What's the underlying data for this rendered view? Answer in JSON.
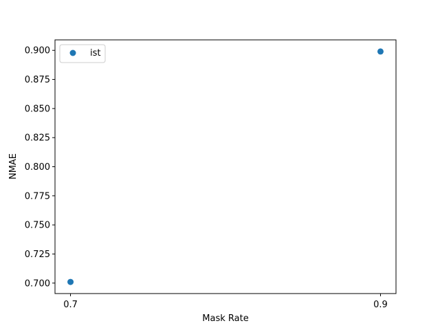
{
  "chart_data": {
    "type": "scatter",
    "title": "",
    "xlabel": "Mask Rate",
    "ylabel": "NMAE",
    "xticks": [
      0.7,
      0.9
    ],
    "xtick_labels": [
      "0.7",
      "0.9"
    ],
    "yticks": [
      0.7,
      0.725,
      0.75,
      0.775,
      0.8,
      0.825,
      0.85,
      0.875,
      0.9
    ],
    "ytick_labels": [
      "0.700",
      "0.725",
      "0.750",
      "0.775",
      "0.800",
      "0.825",
      "0.850",
      "0.875",
      "0.900"
    ],
    "xlim": [
      0.69,
      0.91
    ],
    "ylim": [
      0.691,
      0.909
    ],
    "grid": false,
    "legend_position": "upper-left",
    "series": [
      {
        "name": "ist",
        "color": "#1f77b4",
        "marker": "circle",
        "points": [
          {
            "x": 0.7,
            "y": 0.701
          },
          {
            "x": 0.9,
            "y": 0.899
          }
        ]
      }
    ]
  }
}
